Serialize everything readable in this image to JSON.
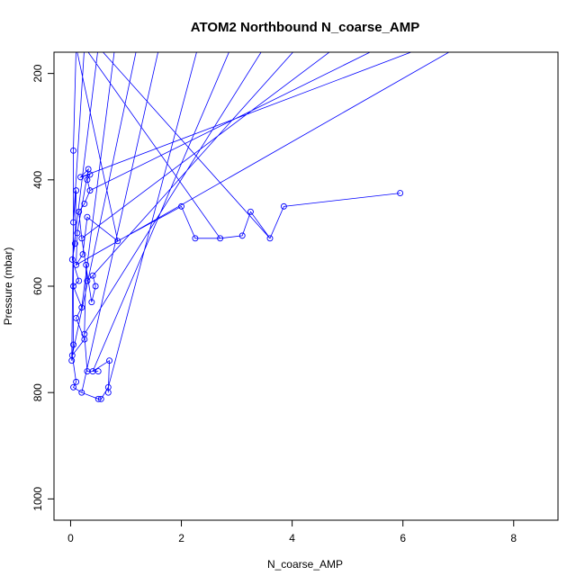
{
  "chart_data": {
    "type": "line",
    "title": "ATOM2 Northbound N_coarse_AMP",
    "xlabel": "N_coarse_AMP",
    "ylabel": "Pressure (mbar)",
    "xlim": [
      -0.3,
      8.8
    ],
    "ylim": [
      1040,
      160
    ],
    "y_reversed": true,
    "x_ticks": [
      0,
      2,
      4,
      6,
      8
    ],
    "y_ticks": [
      200,
      400,
      600,
      800,
      1000
    ],
    "grid": false,
    "legend": "none",
    "series": [
      {
        "color": "#0000ff",
        "marker": "open-circle",
        "points": [
          [
            0.05,
            345
          ],
          [
            0.05,
            710
          ],
          [
            0.02,
            740
          ],
          [
            0.05,
            480
          ],
          [
            0.1,
            420
          ],
          [
            0.08,
            520
          ],
          [
            0.03,
            550
          ],
          [
            0.15,
            590
          ],
          [
            0.05,
            600
          ],
          [
            0.2,
            640
          ],
          [
            0.1,
            660
          ],
          [
            0.25,
            700
          ],
          [
            0.03,
            730
          ],
          [
            0.1,
            780
          ],
          [
            0.05,
            790
          ],
          [
            0.2,
            800
          ],
          [
            0.5,
            812
          ],
          [
            0.55,
            812
          ],
          [
            0.68,
            790
          ],
          [
            0.68,
            800
          ],
          [
            0.7,
            740
          ],
          [
            0.4,
            760
          ],
          [
            0.5,
            760
          ],
          [
            0.3,
            760
          ],
          [
            0.25,
            690
          ],
          [
            0.28,
            560
          ],
          [
            0.3,
            590
          ],
          [
            0.4,
            580
          ],
          [
            0.45,
            600
          ],
          [
            0.38,
            630
          ],
          [
            0.2,
            510
          ],
          [
            0.15,
            460
          ],
          [
            0.25,
            445
          ],
          [
            0.35,
            420
          ],
          [
            0.3,
            400
          ],
          [
            0.35,
            390
          ],
          [
            0.18,
            395
          ],
          [
            0.32,
            380
          ],
          [
            0.12,
            500
          ],
          [
            0.1,
            560
          ],
          [
            0.22,
            540
          ],
          [
            0.3,
            470
          ],
          [
            0.85,
            515
          ],
          [
            2.0,
            450
          ],
          [
            2.25,
            510
          ],
          [
            2.7,
            510
          ],
          [
            3.1,
            505
          ],
          [
            3.25,
            460
          ],
          [
            3.6,
            510
          ],
          [
            3.85,
            450
          ],
          [
            5.95,
            425
          ]
        ]
      }
    ]
  }
}
